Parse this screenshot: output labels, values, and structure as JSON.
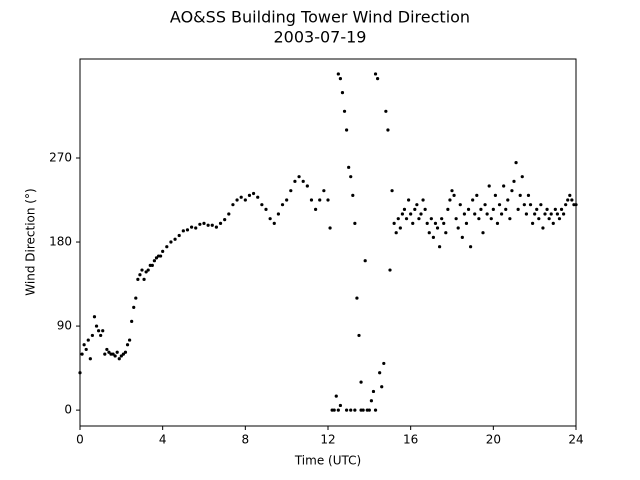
{
  "chart_data": {
    "type": "scatter",
    "title": "AO&SS Building Tower Wind Direction",
    "subtitle": "2003-07-19",
    "x_label": "Time (UTC)",
    "y_label": "Wind Direction (°)",
    "xlim": [
      0,
      24
    ],
    "xticks": [
      0,
      4,
      8,
      12,
      16,
      20,
      24
    ],
    "ylim": [
      -17,
      376
    ],
    "yticks": [
      0,
      90,
      180,
      270
    ],
    "series": [
      {
        "color": "#000000",
        "x": [
          0,
          0.1,
          0.2,
          0.3,
          0.4,
          0.5,
          0.6,
          0.7,
          0.8,
          0.9,
          1.0,
          1.1,
          1.2,
          1.3,
          1.4,
          1.5,
          1.6,
          1.7,
          1.8,
          1.9,
          2.0,
          2.1,
          2.2,
          2.3,
          2.4,
          2.5,
          2.6,
          2.7,
          2.8,
          2.9,
          3.0,
          3.1,
          3.2,
          3.3,
          3.4,
          3.5,
          3.6,
          3.7,
          3.8,
          3.9,
          4.0,
          4.2,
          4.4,
          4.6,
          4.8,
          5.0,
          5.2,
          5.4,
          5.6,
          5.8,
          6.0,
          6.2,
          6.4,
          6.6,
          6.8,
          7.0,
          7.2,
          7.4,
          7.6,
          7.8,
          8.0,
          8.2,
          8.4,
          8.6,
          8.8,
          9.0,
          9.2,
          9.4,
          9.6,
          9.8,
          10.0,
          10.2,
          10.4,
          10.6,
          10.8,
          11.0,
          11.2,
          11.4,
          11.6,
          11.8,
          12.0,
          12.1,
          12.2,
          12.3,
          12.4,
          12.5,
          12.5,
          12.6,
          12.7,
          12.8,
          12.9,
          13.0,
          13.1,
          13.2,
          13.3,
          13.4,
          13.5,
          13.6,
          13.7,
          13.8,
          13.9,
          14.0,
          14.1,
          14.2,
          14.3,
          14.4,
          14.5,
          14.6,
          14.7,
          14.8,
          14.9,
          15.0,
          12.6,
          12.9,
          13.1,
          13.3,
          13.6,
          14.3,
          15.1,
          15.2,
          15.3,
          15.4,
          15.5,
          15.6,
          15.7,
          15.8,
          15.9,
          16.0,
          16.1,
          16.2,
          16.3,
          16.4,
          16.5,
          16.6,
          16.7,
          16.8,
          16.9,
          17.0,
          17.1,
          17.2,
          17.3,
          17.4,
          17.5,
          17.6,
          17.7,
          17.8,
          17.9,
          18.0,
          18.1,
          18.2,
          18.3,
          18.4,
          18.5,
          18.6,
          18.7,
          18.8,
          18.9,
          19.0,
          19.1,
          19.2,
          19.3,
          19.4,
          19.5,
          19.6,
          19.7,
          19.8,
          19.9,
          20.0,
          20.1,
          20.2,
          20.3,
          20.4,
          20.5,
          20.6,
          20.7,
          20.8,
          20.9,
          21.0,
          21.1,
          21.2,
          21.3,
          21.4,
          21.5,
          21.6,
          21.7,
          21.8,
          21.9,
          22.0,
          22.1,
          22.2,
          22.3,
          22.4,
          22.5,
          22.6,
          22.7,
          22.8,
          22.9,
          23.0,
          23.1,
          23.2,
          23.3,
          23.4,
          23.5,
          23.6,
          23.7,
          23.8,
          23.9,
          24.0
        ],
        "values": [
          40,
          60,
          70,
          65,
          75,
          55,
          80,
          100,
          90,
          85,
          80,
          85,
          60,
          65,
          62,
          60,
          60,
          58,
          62,
          55,
          58,
          60,
          62,
          70,
          75,
          95,
          110,
          120,
          140,
          145,
          150,
          140,
          148,
          150,
          155,
          155,
          160,
          163,
          165,
          165,
          170,
          175,
          180,
          183,
          187,
          192,
          193,
          196,
          195,
          199,
          200,
          198,
          198,
          196,
          200,
          204,
          210,
          220,
          225,
          228,
          225,
          230,
          232,
          228,
          220,
          215,
          205,
          200,
          210,
          220,
          225,
          235,
          245,
          250,
          245,
          240,
          225,
          215,
          225,
          235,
          225,
          195,
          0,
          0,
          15,
          0,
          360,
          355,
          340,
          320,
          300,
          260,
          250,
          230,
          200,
          120,
          80,
          30,
          0,
          160,
          0,
          0,
          10,
          20,
          360,
          355,
          40,
          25,
          50,
          320,
          300,
          150,
          5,
          0,
          0,
          0,
          0,
          0,
          235,
          200,
          190,
          205,
          195,
          210,
          215,
          205,
          225,
          210,
          200,
          215,
          220,
          205,
          210,
          225,
          215,
          200,
          190,
          205,
          185,
          200,
          195,
          175,
          205,
          200,
          190,
          215,
          225,
          235,
          230,
          205,
          195,
          220,
          185,
          210,
          200,
          215,
          175,
          225,
          210,
          230,
          205,
          215,
          190,
          220,
          210,
          240,
          205,
          215,
          230,
          200,
          220,
          210,
          240,
          215,
          225,
          205,
          235,
          245,
          265,
          215,
          230,
          250,
          220,
          210,
          230,
          220,
          200,
          210,
          215,
          205,
          220,
          195,
          210,
          215,
          205,
          210,
          200,
          215,
          210,
          205,
          215,
          210,
          220,
          225,
          230,
          225,
          220,
          220
        ]
      }
    ]
  }
}
